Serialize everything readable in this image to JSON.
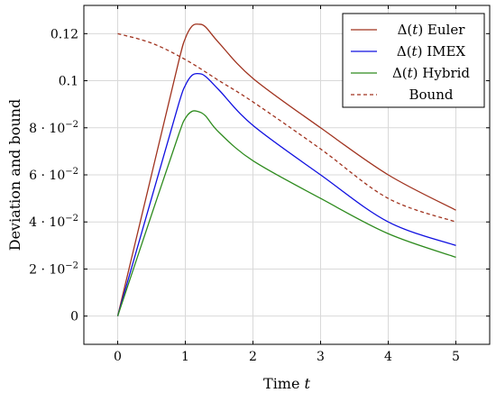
{
  "chart_data": {
    "type": "line",
    "xlabel": "Time t",
    "ylabel": "Deviation and bound",
    "xlim": [
      -0.5,
      5.5
    ],
    "ylim": [
      -0.012,
      0.132
    ],
    "grid": true,
    "legend_position": "top-right",
    "x_ticks": [
      0,
      1,
      2,
      3,
      4,
      5
    ],
    "x_tick_labels": [
      "0",
      "1",
      "2",
      "3",
      "4",
      "5"
    ],
    "y_ticks": [
      0,
      0.02,
      0.04,
      0.06,
      0.08,
      0.1,
      0.12
    ],
    "y_tick_labels": [
      {
        "text": "0"
      },
      {
        "mantissa": "2 · 10",
        "exponent": "−2"
      },
      {
        "mantissa": "4 · 10",
        "exponent": "−2"
      },
      {
        "mantissa": "6 · 10",
        "exponent": "−2"
      },
      {
        "mantissa": "8 · 10",
        "exponent": "−2"
      },
      {
        "text": "0.1"
      },
      {
        "text": "0.12"
      }
    ],
    "series": [
      {
        "name": "Δ(t) Euler",
        "color": "#a0331f",
        "style": "solid",
        "x": [
          0,
          0.5,
          0.9,
          1.0,
          1.1,
          1.2,
          1.3,
          1.5,
          2,
          3,
          4,
          5
        ],
        "y": [
          0,
          0.06,
          0.108,
          0.118,
          0.1232,
          0.124,
          0.1228,
          0.116,
          0.101,
          0.08,
          0.06,
          0.045
        ]
      },
      {
        "name": "Δ(t) IMEX",
        "color": "#1010e0",
        "style": "solid",
        "x": [
          0,
          0.5,
          0.9,
          1.0,
          1.1,
          1.2,
          1.3,
          1.5,
          2,
          3,
          4,
          5
        ],
        "y": [
          0,
          0.05,
          0.09,
          0.098,
          0.1023,
          0.103,
          0.1018,
          0.096,
          0.081,
          0.06,
          0.04,
          0.03
        ]
      },
      {
        "name": "Δ(t) Hybrid",
        "color": "#2e8b1e",
        "style": "solid",
        "x": [
          0,
          0.5,
          0.9,
          1.0,
          1.1,
          1.2,
          1.3,
          1.5,
          2,
          3,
          4,
          5
        ],
        "y": [
          0,
          0.043,
          0.077,
          0.084,
          0.087,
          0.0868,
          0.085,
          0.078,
          0.066,
          0.05,
          0.035,
          0.025
        ]
      },
      {
        "name": "Bound",
        "color": "#a0331f",
        "style": "dashed",
        "x": [
          0,
          0.5,
          1,
          1.5,
          2,
          3,
          4,
          5
        ],
        "y": [
          0.12,
          0.116,
          0.109,
          0.1,
          0.091,
          0.071,
          0.05,
          0.04
        ]
      }
    ],
    "legend": [
      {
        "prefix": "Δ(",
        "var": "t",
        "suffix": ") Euler"
      },
      {
        "prefix": "Δ(",
        "var": "t",
        "suffix": ") IMEX"
      },
      {
        "prefix": "Δ(",
        "var": "t",
        "suffix": ") Hybrid"
      },
      {
        "prefix": "",
        "var": "",
        "suffix": "Bound"
      }
    ]
  }
}
